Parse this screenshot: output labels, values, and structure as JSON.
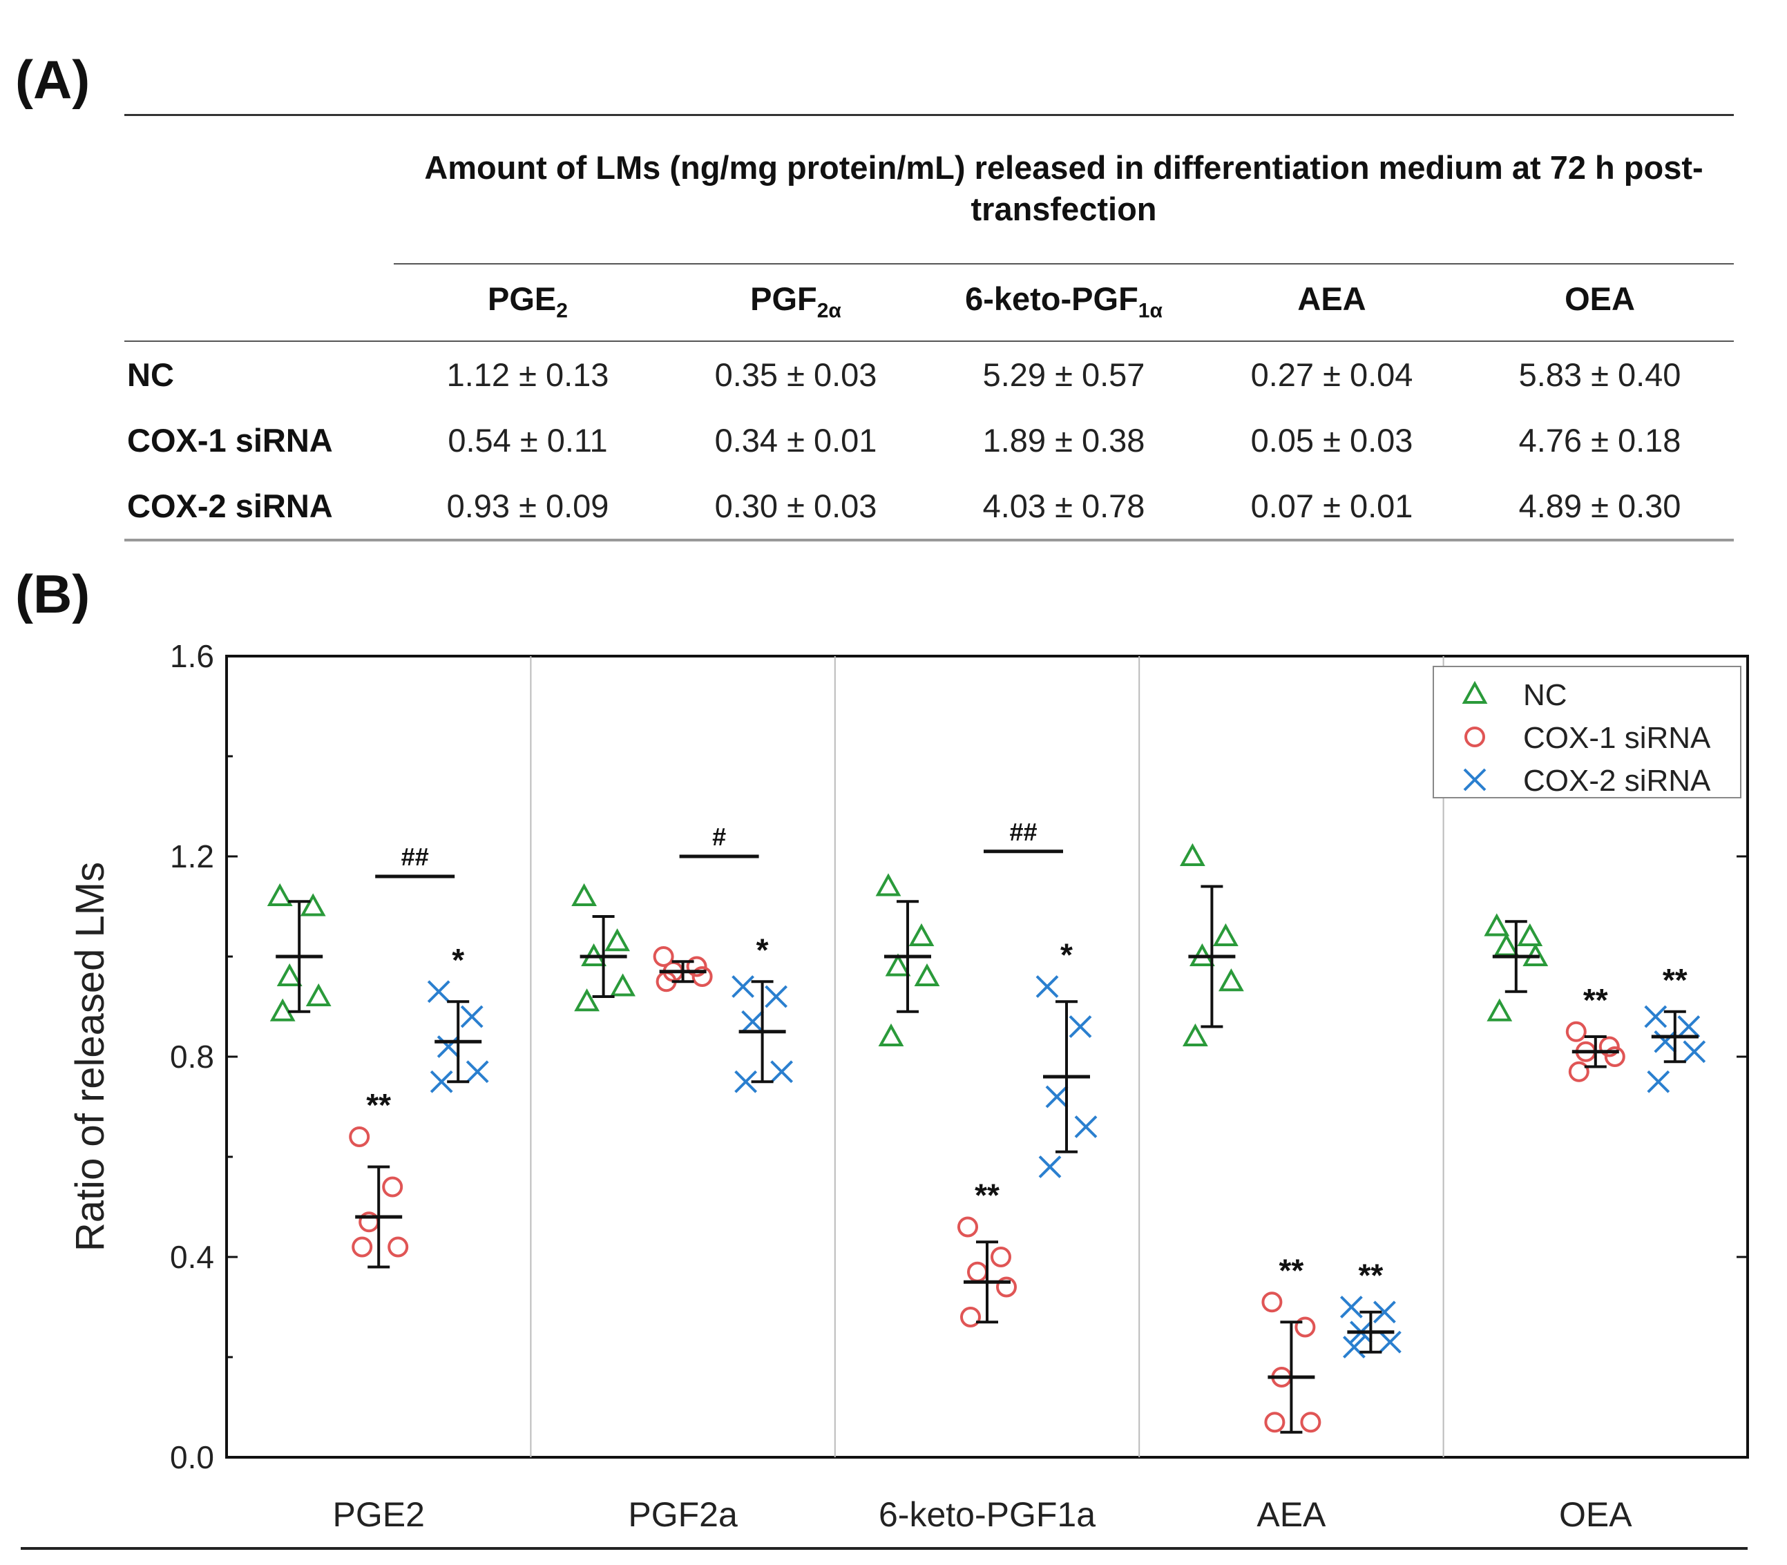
{
  "panel_a_label": "(A)",
  "panel_b_label": "(B)",
  "table": {
    "caption": "Amount of LMs (ng/mg protein/mL) released in differentiation medium at 72 h post-transfection",
    "columns": [
      {
        "base": "PGE",
        "sub": "2"
      },
      {
        "base": "PGF",
        "sub": "2α"
      },
      {
        "base": "6-keto-PGF",
        "sub": "1α"
      },
      {
        "base": "AEA",
        "sub": ""
      },
      {
        "base": "OEA",
        "sub": ""
      }
    ],
    "rows": [
      {
        "label": "NC",
        "cells": [
          "1.12 ± 0.13",
          "0.35 ± 0.03",
          "5.29 ± 0.57",
          "0.27 ± 0.04",
          "5.83 ± 0.40"
        ]
      },
      {
        "label": "COX-1 siRNA",
        "cells": [
          "0.54 ± 0.11",
          "0.34 ± 0.01",
          "1.89 ± 0.38",
          "0.05 ± 0.03",
          "4.76 ± 0.18"
        ]
      },
      {
        "label": "COX-2 siRNA",
        "cells": [
          "0.93 ± 0.09",
          "0.30 ± 0.03",
          "4.03 ± 0.78",
          "0.07 ± 0.01",
          "4.89 ± 0.30"
        ]
      }
    ]
  },
  "chart_data": {
    "type": "scatter",
    "title": "",
    "xlabel": "",
    "ylabel": "Ratio of released LMs",
    "ylim": [
      0,
      1.6
    ],
    "yticks": [
      "0.0",
      "0.4",
      "0.8",
      "1.2",
      "1.6"
    ],
    "grid": false,
    "legend_position": "top-right",
    "colors": {
      "NC": "#2a9a3a",
      "COX-1 siRNA": "#e05555",
      "COX-2 siRNA": "#2a7fcf"
    },
    "categories": [
      "PGE2",
      "PGF2a",
      "6-keto-PGF1a",
      "AEA",
      "OEA"
    ],
    "series": [
      {
        "name": "NC",
        "marker": "triangle",
        "points": [
          [
            1.12,
            1.1,
            0.96,
            0.92,
            0.89
          ],
          [
            1.12,
            1.03,
            1.0,
            0.94,
            0.91
          ],
          [
            1.14,
            1.04,
            0.98,
            0.96,
            0.84
          ],
          [
            1.2,
            1.04,
            1.0,
            0.95,
            0.84
          ],
          [
            1.06,
            1.04,
            1.02,
            1.0,
            0.89
          ]
        ],
        "mean": [
          1.0,
          1.0,
          1.0,
          1.0,
          1.0
        ],
        "sd": [
          0.11,
          0.08,
          0.11,
          0.14,
          0.07
        ]
      },
      {
        "name": "COX-1 siRNA",
        "marker": "circle",
        "points": [
          [
            0.64,
            0.54,
            0.47,
            0.42,
            0.42
          ],
          [
            1.0,
            0.98,
            0.97,
            0.96,
            0.95
          ],
          [
            0.46,
            0.4,
            0.37,
            0.34,
            0.28
          ],
          [
            0.31,
            0.26,
            0.16,
            0.07,
            0.07
          ],
          [
            0.85,
            0.82,
            0.81,
            0.8,
            0.77
          ]
        ],
        "mean": [
          0.48,
          0.97,
          0.35,
          0.16,
          0.81
        ],
        "sd": [
          0.1,
          0.02,
          0.08,
          0.11,
          0.03
        ]
      },
      {
        "name": "COX-2 siRNA",
        "marker": "x",
        "points": [
          [
            0.93,
            0.88,
            0.82,
            0.77,
            0.75
          ],
          [
            0.94,
            0.92,
            0.87,
            0.77,
            0.75
          ],
          [
            0.94,
            0.86,
            0.72,
            0.66,
            0.58
          ],
          [
            0.3,
            0.29,
            0.25,
            0.23,
            0.22
          ],
          [
            0.88,
            0.86,
            0.83,
            0.81,
            0.75
          ]
        ],
        "mean": [
          0.83,
          0.85,
          0.76,
          0.25,
          0.84
        ],
        "sd": [
          0.08,
          0.1,
          0.15,
          0.04,
          0.05
        ]
      }
    ],
    "annotations": [
      {
        "category": "PGE2",
        "series": "COX-1 siRNA",
        "text": "**"
      },
      {
        "category": "PGE2",
        "series": "COX-2 siRNA",
        "text": "*"
      },
      {
        "category": "PGF2a",
        "series": "COX-2 siRNA",
        "text": "*"
      },
      {
        "category": "6-keto-PGF1a",
        "series": "COX-1 siRNA",
        "text": "**"
      },
      {
        "category": "6-keto-PGF1a",
        "series": "COX-2 siRNA",
        "text": "*"
      },
      {
        "category": "AEA",
        "series": "COX-1 siRNA",
        "text": "**"
      },
      {
        "category": "AEA",
        "series": "COX-2 siRNA",
        "text": "**"
      },
      {
        "category": "OEA",
        "series": "COX-1 siRNA",
        "text": "**"
      },
      {
        "category": "OEA",
        "series": "COX-2 siRNA",
        "text": "**"
      }
    ],
    "brackets": [
      {
        "category": "PGE2",
        "y": 1.16,
        "text": "##"
      },
      {
        "category": "PGF2a",
        "y": 1.2,
        "text": "#"
      },
      {
        "category": "6-keto-PGF1a",
        "y": 1.21,
        "text": "##"
      }
    ]
  }
}
